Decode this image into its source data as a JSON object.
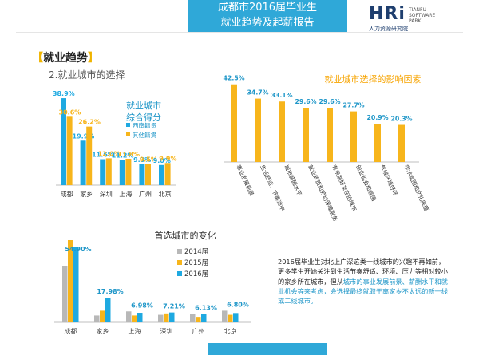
{
  "header": {
    "title_line1": "成都市2016届毕业生",
    "title_line2": "就业趋势及起薪报告"
  },
  "logo": {
    "mark": "HRi",
    "side_line1": "TIANFU",
    "side_line2": "SOFTWARE",
    "side_line3": "PARK",
    "cn": "人力资源研究院"
  },
  "section": {
    "open": "【",
    "label": "就业趋势",
    "close": "】"
  },
  "subtitle": "2.就业城市的选择",
  "colors": {
    "blue": "#1ea9e1",
    "orange": "#f7b51b",
    "gray": "#b8b8b8",
    "banner": "#2fa8d8"
  },
  "chart_data": [
    {
      "type": "bar",
      "title": "就业城市综合得分",
      "title_line1": "就业城市",
      "title_line2": "综合得分",
      "categories": [
        "成都",
        "家乡",
        "深圳",
        "上海",
        "广州",
        "北京"
      ],
      "series": [
        {
          "name": "西南籍贯",
          "values": [
            38.9,
            19.9,
            11.6,
            11.2,
            9.3,
            9.0
          ],
          "labels": [
            "38.9%",
            "19.9%",
            "11.6%",
            "11.2%",
            "9.3%",
            "9.0%"
          ],
          "color": "#1ea9e1"
        },
        {
          "name": "其他籍贯",
          "values": [
            30.6,
            26.2,
            12.0,
            11.8,
            9.5,
            9.9
          ],
          "labels": [
            "30.6%",
            "26.2%",
            "12.0%",
            "11.8%",
            "9.5%",
            "9.9%"
          ],
          "color": "#f7b51b"
        }
      ],
      "ylim": [
        0,
        40
      ],
      "legend": "right"
    },
    {
      "type": "bar",
      "title": "就业城市选择的影响因素",
      "categories": [
        "事业发展前景",
        "生活舒适、节奏适中",
        "城市薪酬水平",
        "就业政策和劳动保障服务",
        "有亲朋好友在的城市",
        "创业机会和氛围",
        "气候环境好坏",
        "学术氛围和文化底蕴"
      ],
      "values": [
        42.5,
        34.7,
        33.1,
        29.6,
        29.6,
        27.7,
        20.9,
        20.3
      ],
      "labels": [
        "42.5%",
        "34.7%",
        "33.1%",
        "29.6%",
        "29.6%",
        "27.7%",
        "20.9%",
        "20.3%"
      ],
      "color": "#f7b51b",
      "ylim": [
        0,
        45
      ]
    },
    {
      "type": "bar",
      "title": "首选城市的变化",
      "categories": [
        "成都",
        "家乡",
        "上海",
        "深圳",
        "广州",
        "北京"
      ],
      "series": [
        {
          "name": "2014届",
          "values": [
            41.0,
            5.0,
            8.0,
            5.5,
            6.0,
            8.5
          ],
          "color": "#b8b8b8"
        },
        {
          "name": "2015届",
          "values": [
            60.0,
            8.5,
            5.0,
            6.5,
            4.0,
            5.5
          ],
          "color": "#f7b51b"
        },
        {
          "name": "2016届",
          "values": [
            54.9,
            17.98,
            6.98,
            7.21,
            6.13,
            6.8
          ],
          "color": "#1ea9e1"
        }
      ],
      "value_labels": [
        "54.90%",
        "17.98%",
        "6.98%",
        "7.21%",
        "6.13%",
        "6.80%"
      ],
      "ylim": [
        0,
        60
      ],
      "legend": "right"
    }
  ],
  "description": {
    "part1": "2016届毕业生对北上广深这类一线城市的兴趣不再如前，更多学生开始关注到生活节奏舒适、环境、压力等相对较小的家乡所在城市，但从",
    "highlight": "城市的事业发展前景、薪酬水平和就业机会等来考虑，会选择最终就职于离家乡不太远的新一线或二线城市。",
    "part2": ""
  }
}
